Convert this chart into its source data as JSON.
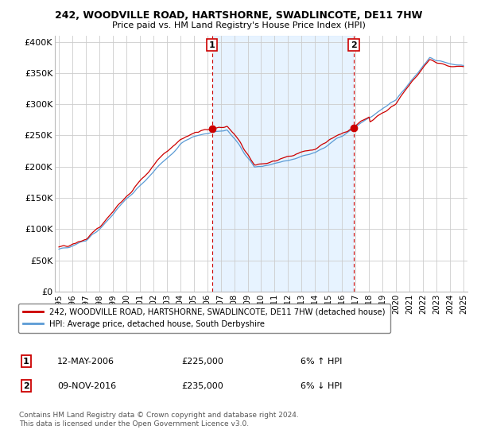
{
  "title1": "242, WOODVILLE ROAD, HARTSHORNE, SWADLINCOTE, DE11 7HW",
  "title2": "Price paid vs. HM Land Registry's House Price Index (HPI)",
  "legend_line1": "242, WOODVILLE ROAD, HARTSHORNE, SWADLINCOTE, DE11 7HW (detached house)",
  "legend_line2": "HPI: Average price, detached house, South Derbyshire",
  "transaction1_date": "12-MAY-2006",
  "transaction1_price": "£225,000",
  "transaction1_hpi": "6% ↑ HPI",
  "transaction2_date": "09-NOV-2016",
  "transaction2_price": "£235,000",
  "transaction2_hpi": "6% ↓ HPI",
  "footnote": "Contains HM Land Registry data © Crown copyright and database right 2024.\nThis data is licensed under the Open Government Licence v3.0.",
  "red_color": "#cc0000",
  "blue_color": "#5b9bd5",
  "vline_color": "#cc0000",
  "fill_color": "#ddeeff",
  "ylim_min": 0,
  "ylim_max": 410000,
  "yticks": [
    0,
    50000,
    100000,
    150000,
    200000,
    250000,
    300000,
    350000,
    400000
  ],
  "ytick_labels": [
    "£0",
    "£50K",
    "£100K",
    "£150K",
    "£200K",
    "£250K",
    "£300K",
    "£350K",
    "£400K"
  ],
  "transaction1_x": 2006.36,
  "transaction2_x": 2016.86
}
